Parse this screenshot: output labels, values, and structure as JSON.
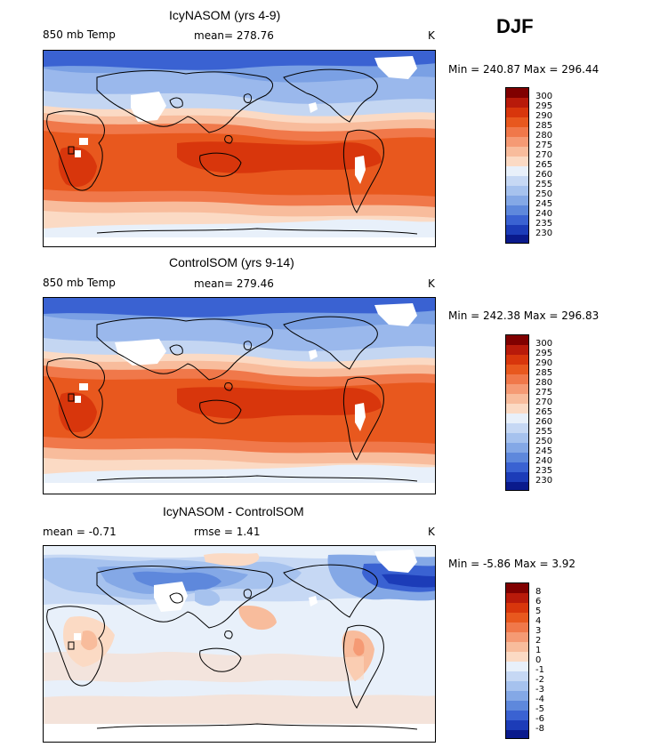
{
  "figure": {
    "season": "DJF",
    "panels": [
      {
        "title": "IcyNASOM (yrs 4-9)",
        "left_label": "850 mb Temp",
        "center_label": "mean= 278.76",
        "units": "K",
        "minmax": "Min = 240.87 Max = 296.44",
        "colorbar_ticks": [
          "300",
          "295",
          "290",
          "285",
          "280",
          "275",
          "270",
          "265",
          "260",
          "255",
          "250",
          "245",
          "240",
          "235",
          "230"
        ],
        "colorbar_colors": [
          "#800000",
          "#b81a0a",
          "#d8360c",
          "#e8581e",
          "#f0784a",
          "#f59a74",
          "#f8bc9c",
          "#fbdac4",
          "#e8f0fa",
          "#c6d8f4",
          "#a6c2ee",
          "#84a8e6",
          "#5e88dc",
          "#3a62d2",
          "#1c3cb8",
          "#0a1a8c"
        ]
      },
      {
        "title": "ControlSOM (yrs 9-14)",
        "left_label": "850 mb Temp",
        "center_label": "mean= 279.46",
        "units": "K",
        "minmax": "Min = 242.38 Max = 296.83",
        "colorbar_ticks": [
          "300",
          "295",
          "290",
          "285",
          "280",
          "275",
          "270",
          "265",
          "260",
          "255",
          "250",
          "245",
          "240",
          "235",
          "230"
        ],
        "colorbar_colors": [
          "#800000",
          "#b81a0a",
          "#d8360c",
          "#e8581e",
          "#f0784a",
          "#f59a74",
          "#f8bc9c",
          "#fbdac4",
          "#e8f0fa",
          "#c6d8f4",
          "#a6c2ee",
          "#84a8e6",
          "#5e88dc",
          "#3a62d2",
          "#1c3cb8",
          "#0a1a8c"
        ]
      },
      {
        "title": "IcyNASOM - ControlSOM",
        "left_label": "mean =   -0.71",
        "center_label": "rmse =    1.41",
        "units": "K",
        "minmax": "Min =  -5.86 Max =    3.92",
        "colorbar_ticks": [
          "8",
          "6",
          "5",
          "4",
          "3",
          "2",
          "1",
          "0",
          "-1",
          "-2",
          "-3",
          "-4",
          "-5",
          "-6",
          "-8"
        ],
        "colorbar_colors": [
          "#800000",
          "#b81a0a",
          "#d8360c",
          "#e8581e",
          "#f0784a",
          "#f59a74",
          "#f8bc9c",
          "#fbdac4",
          "#e8f0fa",
          "#c6d8f4",
          "#a6c2ee",
          "#84a8e6",
          "#5e88dc",
          "#3a62d2",
          "#1c3cb8",
          "#0a1a8c"
        ]
      }
    ]
  }
}
